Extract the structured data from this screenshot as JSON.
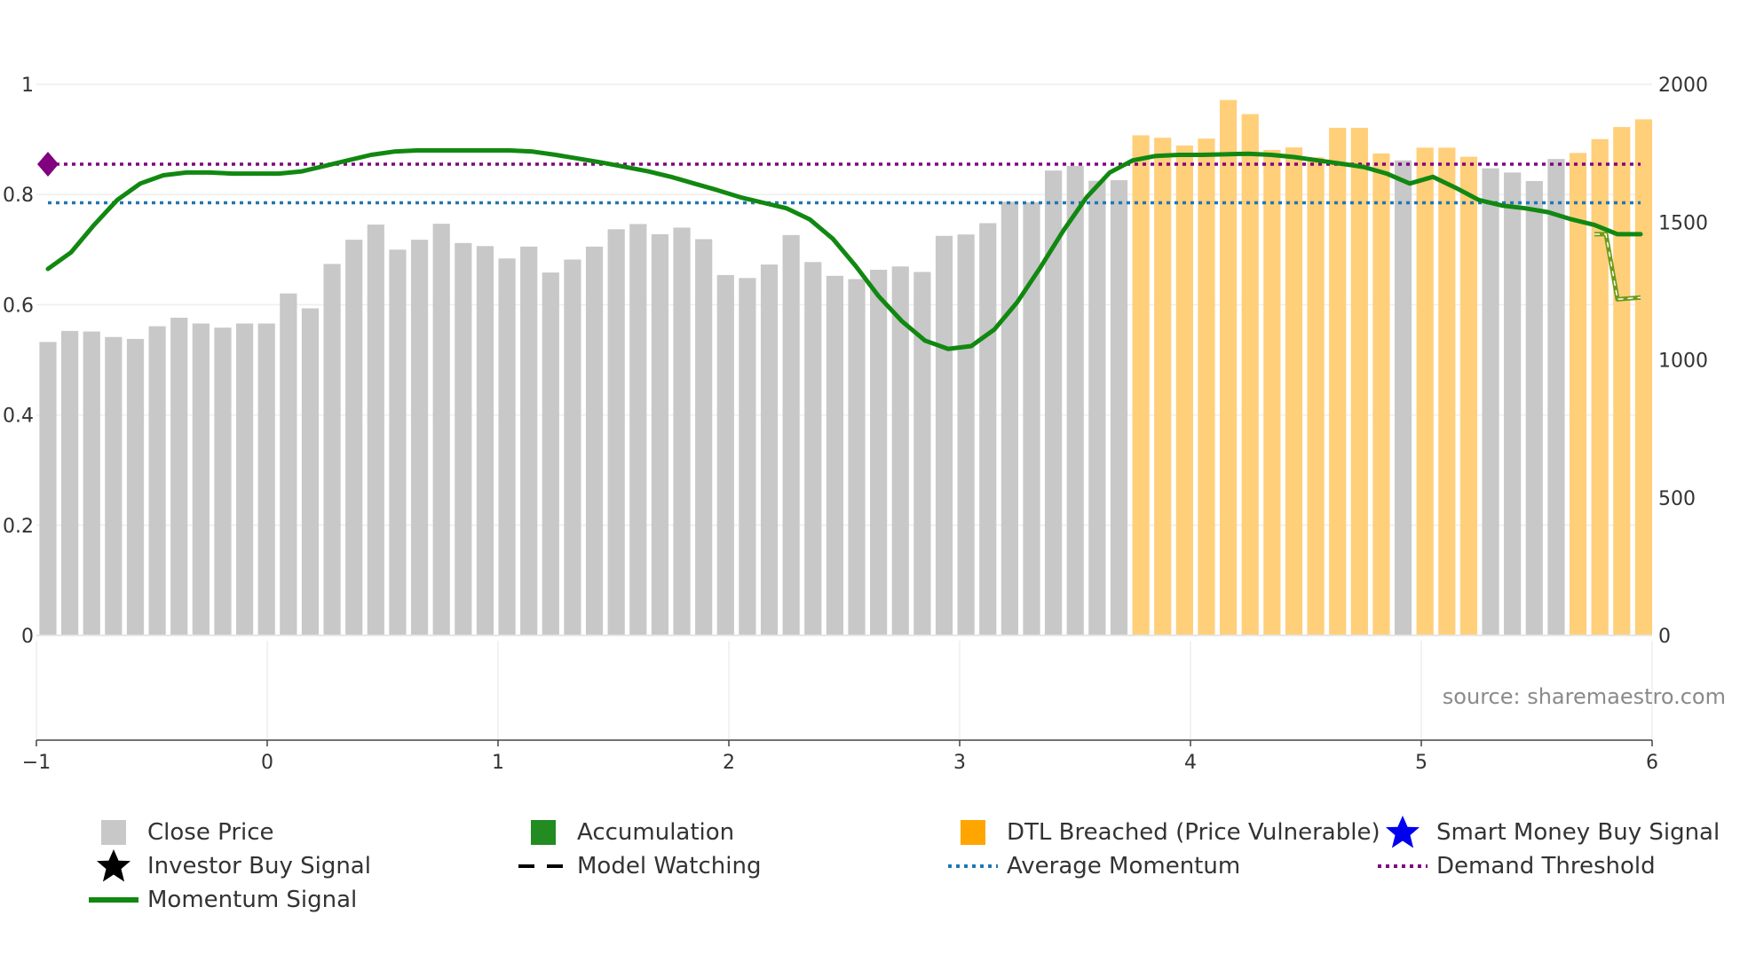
{
  "chart_data": {
    "type": "bar+line",
    "title": "",
    "source_label": "source: sharemaestro.com",
    "x_axis": {
      "range": [
        -1,
        6
      ],
      "tick_values": [
        -1,
        0,
        1,
        2,
        3,
        4,
        5,
        6
      ],
      "tick_labels": [
        "−1",
        "0",
        "1",
        "2",
        "3",
        "4",
        "5",
        "6"
      ]
    },
    "y_left": {
      "range": [
        0,
        1
      ],
      "tick_values": [
        0,
        0.2,
        0.4,
        0.6,
        0.8,
        1
      ],
      "tick_labels": [
        "0",
        "0.2",
        "0.4",
        "0.6",
        "0.8",
        "1"
      ]
    },
    "y_right": {
      "range": [
        0,
        2000
      ],
      "tick_values": [
        0,
        500,
        1000,
        1500,
        2000
      ],
      "tick_labels": [
        "0",
        "500",
        "1000",
        "1500",
        "2000"
      ]
    },
    "colors": {
      "close_price": "#c8c8c8",
      "accumulation": "#228b22",
      "dtl_breached": "#ffcf7a",
      "momentum": "#118811",
      "momentum_late": "#6e9a1a",
      "average_momentum": "#1f77b4",
      "demand_threshold": "#800080",
      "smart_money": "#0000ee",
      "investor": "#000000",
      "grid": "#eeeeee"
    },
    "bars": {
      "x_start": -0.95,
      "x_step": 0.0947,
      "series_name": "Close Price",
      "values": [
        1065,
        1105,
        1103,
        1083,
        1076,
        1122,
        1153,
        1132,
        1117,
        1132,
        1132,
        1241,
        1187,
        1348,
        1436,
        1491,
        1400,
        1436,
        1494,
        1424,
        1413,
        1368,
        1411,
        1317,
        1364,
        1411,
        1474,
        1493,
        1456,
        1480,
        1438,
        1308,
        1297,
        1346,
        1453,
        1355,
        1305,
        1293,
        1327,
        1339,
        1319,
        1450,
        1455,
        1496,
        1574,
        1572,
        1687,
        1704,
        1650,
        1652,
        1815,
        1806,
        1778,
        1803,
        1943,
        1892,
        1762,
        1771,
        1735,
        1842,
        1842,
        1749,
        1724,
        1770,
        1770,
        1737,
        1695,
        1680,
        1649,
        1729,
        1751,
        1801,
        1845,
        1873
      ],
      "categories": [
        "grey",
        "grey",
        "grey",
        "grey",
        "grey",
        "grey",
        "grey",
        "grey",
        "grey",
        "grey",
        "grey",
        "grey",
        "grey",
        "grey",
        "grey",
        "grey",
        "grey",
        "grey",
        "grey",
        "grey",
        "grey",
        "grey",
        "grey",
        "grey",
        "grey",
        "grey",
        "grey",
        "grey",
        "grey",
        "grey",
        "grey",
        "grey",
        "grey",
        "grey",
        "grey",
        "grey",
        "grey",
        "grey",
        "grey",
        "grey",
        "grey",
        "grey",
        "grey",
        "grey",
        "grey",
        "grey",
        "grey",
        "grey",
        "grey",
        "grey",
        "orange",
        "orange",
        "orange",
        "orange",
        "orange",
        "orange",
        "orange",
        "orange",
        "orange",
        "orange",
        "orange",
        "orange",
        "grey",
        "orange",
        "orange",
        "orange",
        "grey",
        "grey",
        "grey",
        "grey",
        "orange",
        "orange",
        "orange",
        "orange"
      ]
    },
    "momentum_line": {
      "name": "Momentum Signal",
      "x": [
        -0.95,
        -0.85,
        -0.75,
        -0.65,
        -0.55,
        -0.45,
        -0.35,
        -0.25,
        -0.15,
        -0.05,
        0.05,
        0.15,
        0.25,
        0.35,
        0.45,
        0.55,
        0.65,
        0.75,
        0.85,
        0.95,
        1.05,
        1.15,
        1.25,
        1.35,
        1.45,
        1.55,
        1.65,
        1.75,
        1.85,
        1.95,
        2.05,
        2.15,
        2.25,
        2.35,
        2.45,
        2.55,
        2.65,
        2.75,
        2.85,
        2.95,
        3.05,
        3.15,
        3.25,
        3.35,
        3.45,
        3.55,
        3.65,
        3.75,
        3.85,
        3.95,
        4.05,
        4.15,
        4.25,
        4.35,
        4.45,
        4.55,
        4.65,
        4.75,
        4.85,
        4.95,
        5.05,
        5.15,
        5.25,
        5.35,
        5.45,
        5.55,
        5.65,
        5.75,
        5.85,
        5.95
      ],
      "y": [
        0.665,
        0.695,
        0.745,
        0.79,
        0.82,
        0.835,
        0.84,
        0.84,
        0.838,
        0.838,
        0.838,
        0.842,
        0.852,
        0.862,
        0.872,
        0.878,
        0.88,
        0.88,
        0.88,
        0.88,
        0.88,
        0.878,
        0.872,
        0.865,
        0.858,
        0.85,
        0.842,
        0.832,
        0.82,
        0.808,
        0.795,
        0.785,
        0.775,
        0.755,
        0.72,
        0.67,
        0.615,
        0.57,
        0.535,
        0.52,
        0.525,
        0.555,
        0.605,
        0.668,
        0.735,
        0.795,
        0.84,
        0.862,
        0.87,
        0.872,
        0.872,
        0.873,
        0.874,
        0.872,
        0.868,
        0.862,
        0.856,
        0.85,
        0.838,
        0.82,
        0.832,
        0.812,
        0.79,
        0.78,
        0.775,
        0.768,
        0.755,
        0.745,
        0.728,
        0.728
      ],
      "tail_x": [
        5.75,
        5.8,
        5.85,
        5.95
      ],
      "tail_y": [
        0.728,
        0.728,
        0.61,
        0.613
      ]
    },
    "average_momentum": {
      "name": "Average Momentum",
      "y": 0.785
    },
    "demand_threshold": {
      "name": "Demand Threshold",
      "y": 0.855,
      "marker_x": -0.95
    }
  },
  "legend": [
    {
      "label": "Close Price",
      "symbol": "square",
      "color": "#c8c8c8"
    },
    {
      "label": "Accumulation",
      "symbol": "square",
      "color": "#228b22"
    },
    {
      "label": "DTL Breached (Price Vulnerable)",
      "symbol": "square",
      "color": "#ffa500"
    },
    {
      "label": "Smart Money Buy Signal",
      "symbol": "star",
      "color": "#0000ee"
    },
    {
      "label": "Investor Buy Signal",
      "symbol": "star",
      "color": "#000000"
    },
    {
      "label": "Model Watching",
      "symbol": "dash",
      "color": "#000000"
    },
    {
      "label": "Average Momentum",
      "symbol": "dot",
      "color": "#1f77b4"
    },
    {
      "label": "Demand Threshold",
      "symbol": "dot",
      "color": "#800080"
    },
    {
      "label": "Momentum Signal",
      "symbol": "line",
      "color": "#118811"
    }
  ]
}
